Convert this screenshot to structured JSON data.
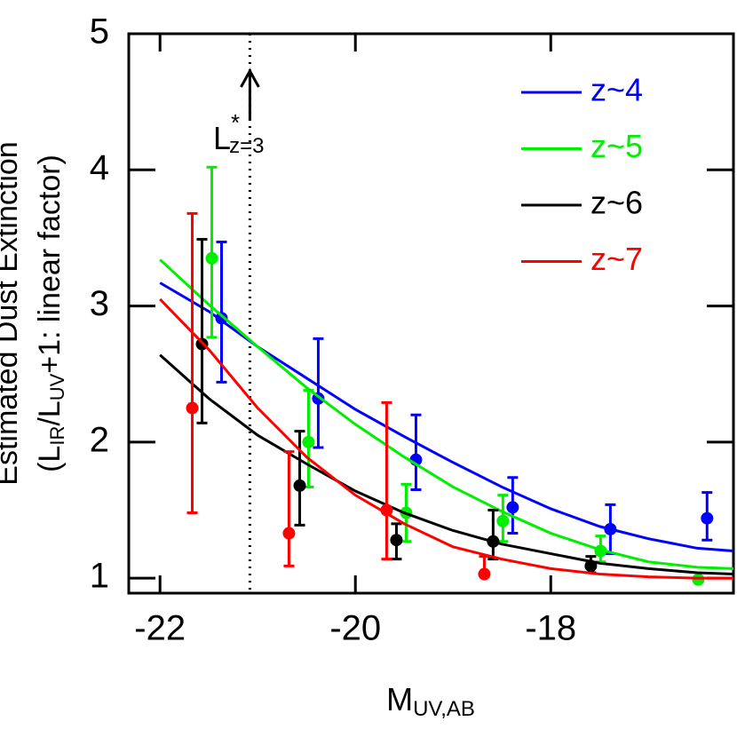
{
  "chart_data": {
    "type": "errorbar-line",
    "y_label_top": "Estimated Dust Extinction",
    "y_label_parts": [
      "(L",
      "IR",
      "/L",
      "UV",
      "+1: linear factor)"
    ],
    "x_label_parts": [
      "M",
      "UV,AB"
    ],
    "annotation_parts": [
      "L",
      "*",
      "z=3"
    ],
    "marker_line_x": -21.08,
    "xlim": [
      -22.32,
      -16.13
    ],
    "ylim": [
      0.89,
      5
    ],
    "xticks": [
      -22,
      -20,
      -18
    ],
    "yticks": [
      1,
      2,
      3,
      4,
      5
    ],
    "legend": "upper right",
    "curve_x": [
      -22,
      -21.5,
      -21,
      -20.5,
      -20,
      -19.5,
      -19,
      -18.5,
      -18,
      -17.5,
      -17,
      -16.5,
      -16.13
    ],
    "series": [
      {
        "name": "z~4",
        "color": "#0000ff",
        "x": [
          -21.37,
          -20.38,
          -19.38,
          -18.39,
          -17.39,
          -16.4
        ],
        "values": [
          2.91,
          2.32,
          1.87,
          1.52,
          1.36,
          1.44
        ],
        "error_low": [
          2.44,
          1.96,
          1.65,
          1.33,
          1.18,
          1.28
        ],
        "error_high": [
          3.47,
          2.76,
          2.2,
          1.74,
          1.54,
          1.63
        ],
        "curve": [
          3.17,
          2.96,
          2.7,
          2.47,
          2.24,
          2.04,
          1.85,
          1.67,
          1.51,
          1.38,
          1.29,
          1.22,
          1.2
        ]
      },
      {
        "name": "z~5",
        "color": "#00ee00",
        "x": [
          -21.47,
          -20.48,
          -19.48,
          -18.49,
          -17.49,
          -16.49
        ],
        "values": [
          3.35,
          2.0,
          1.48,
          1.42,
          1.2,
          0.99
        ],
        "error_low": [
          2.77,
          1.67,
          1.27,
          1.27,
          1.12,
          null
        ],
        "error_high": [
          4.02,
          2.38,
          1.69,
          1.61,
          1.31,
          null
        ],
        "curve": [
          3.34,
          3.01,
          2.7,
          2.4,
          2.13,
          1.89,
          1.67,
          1.49,
          1.33,
          1.21,
          1.12,
          1.08,
          1.07
        ]
      },
      {
        "name": "z~6",
        "color": "#000000",
        "x": [
          -21.57,
          -20.57,
          -19.58,
          -18.59,
          -17.59
        ],
        "values": [
          2.72,
          1.68,
          1.28,
          1.27,
          1.09
        ],
        "error_low": [
          2.14,
          1.39,
          1.14,
          1.14,
          1.04
        ],
        "error_high": [
          3.49,
          2.08,
          1.4,
          1.5,
          1.16
        ],
        "curve": [
          2.64,
          2.32,
          2.05,
          1.84,
          1.64,
          1.48,
          1.35,
          1.25,
          1.18,
          1.11,
          1.07,
          1.04,
          1.03
        ]
      },
      {
        "name": "z~7",
        "color": "#ff0000",
        "x": [
          -21.67,
          -20.68,
          -19.68,
          -18.68
        ],
        "values": [
          2.25,
          1.33,
          1.5,
          1.03
        ],
        "error_low": [
          1.48,
          1.09,
          1.14,
          1.03
        ],
        "error_high": [
          3.68,
          1.93,
          2.29,
          1.16
        ],
        "curve": [
          3.05,
          2.68,
          2.25,
          1.89,
          1.61,
          1.4,
          1.23,
          1.14,
          1.07,
          1.03,
          1.01,
          1.0,
          1.0
        ]
      }
    ]
  }
}
